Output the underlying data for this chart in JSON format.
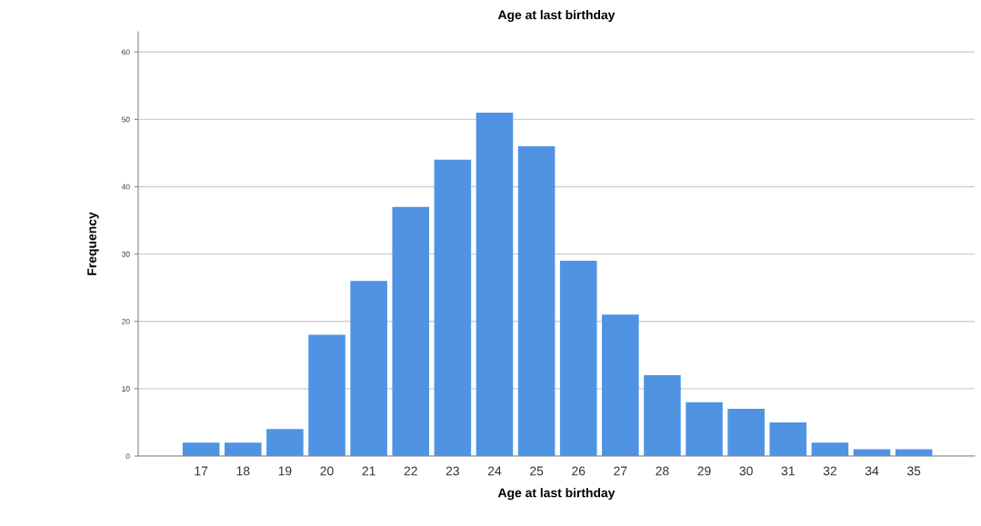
{
  "chart_data": {
    "type": "bar",
    "title": "Age at last birthday",
    "xlabel": "Age at last birthday",
    "ylabel": "Frequency",
    "categories": [
      "17",
      "18",
      "19",
      "20",
      "21",
      "22",
      "23",
      "24",
      "25",
      "26",
      "27",
      "28",
      "29",
      "30",
      "31",
      "32",
      "34",
      "35"
    ],
    "values": [
      2,
      2,
      4,
      18,
      26,
      37,
      44,
      51,
      46,
      29,
      21,
      12,
      8,
      7,
      5,
      2,
      1,
      1
    ],
    "color": "#5093e3",
    "ylim": [
      0,
      63
    ],
    "yticks": [
      0,
      10,
      20,
      30,
      40,
      50,
      60
    ],
    "grid": "y"
  }
}
